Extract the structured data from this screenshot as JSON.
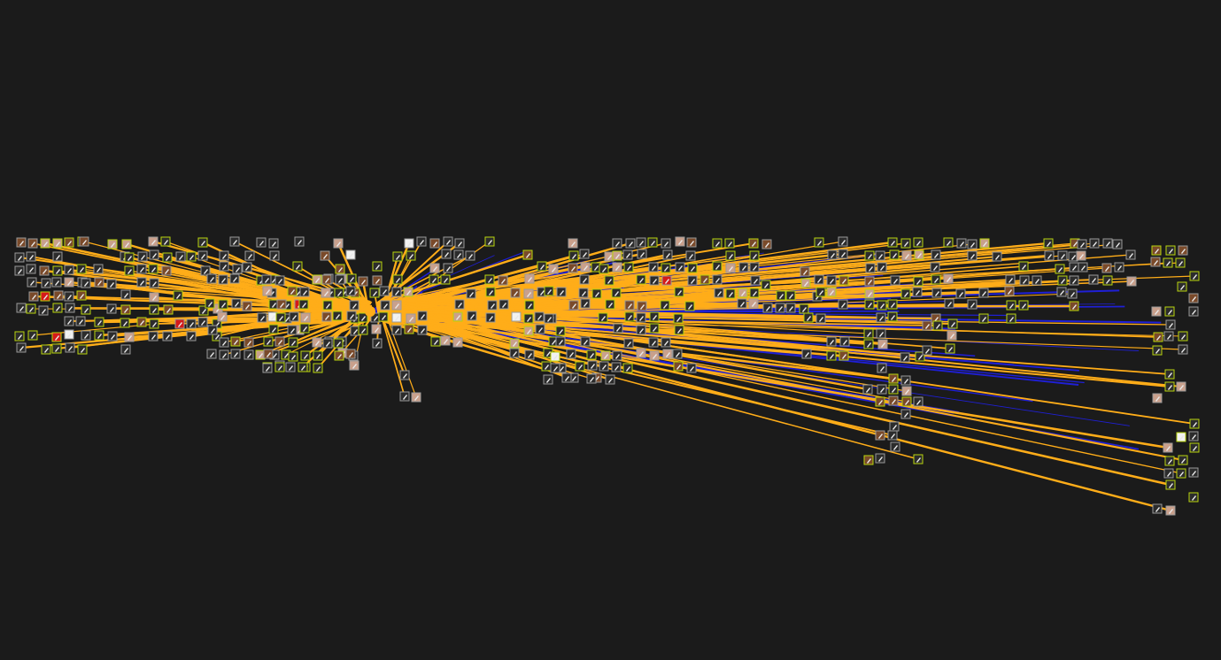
{
  "colors": {
    "background": "#1b1b1b",
    "edge_primary": "#ffad19",
    "edge_secondary": "#1f1fd6",
    "node_border_highlight": "#b8d40c",
    "node_border_default": "#9a9a9a",
    "node_fill_default": "#2c2c2c",
    "node_fill_skin": "#c9a08c",
    "node_fill_white": "#f2f2f2",
    "node_fill_red": "#d41a1a",
    "node_fill_brown": "#7a4a2a"
  },
  "graph": {
    "description_visible_text": "",
    "hub_label": "",
    "node_icon": "pen-nib-icon"
  }
}
